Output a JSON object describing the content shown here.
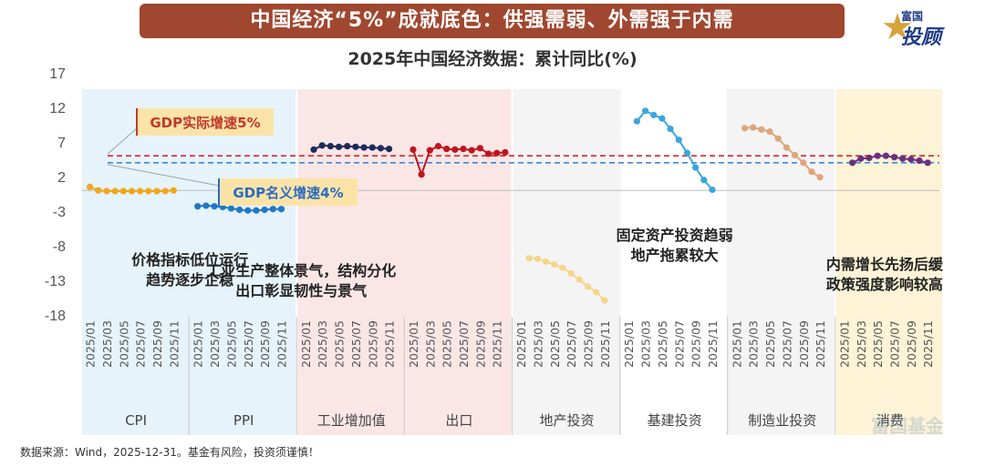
{
  "banner": {
    "title": "中国经济“5%”成就底色：供强需弱、外需强于内需"
  },
  "logo": {
    "top": "富国",
    "main": "投顾",
    "star_glyph": "★",
    "star_color": "#d6a23c",
    "text_color": "#1f3c88"
  },
  "footer": {
    "source": "数据来源：Wind，2025-12-31。基金有风险，投资须谨慎！",
    "watermark": "富国基金"
  },
  "chart_data": {
    "type": "line",
    "title": "2025年中国经济数据：累计同比(%)",
    "xlabel": "",
    "ylabel": "",
    "ylim": [
      -18,
      17
    ],
    "yticks": [
      17,
      12,
      7,
      2,
      -3,
      -8,
      -13,
      -18
    ],
    "zero_line": 0,
    "grid": false,
    "reference_lines": [
      {
        "name": "GDP实际增速5%",
        "value": 5,
        "color": "#d9262b",
        "style": "dashed",
        "label_color": "#c0392b",
        "label_bg": "#fbe3a8"
      },
      {
        "name": "GDP名义增速4%",
        "value": 4,
        "color": "#3a8ad8",
        "style": "dashed",
        "label_color": "#2a6cc0",
        "label_bg": "#fbe3a8"
      }
    ],
    "groups": [
      {
        "name": "CPI",
        "bg": "#e6f3fb",
        "color": "#f0a81b",
        "x": [
          "2025/01",
          "2025/02",
          "2025/03",
          "2025/04",
          "2025/05",
          "2025/06",
          "2025/07",
          "2025/08",
          "2025/09",
          "2025/10",
          "2025/11"
        ],
        "values": [
          0.5,
          0.0,
          -0.1,
          -0.1,
          -0.1,
          -0.1,
          -0.1,
          -0.1,
          -0.1,
          -0.1,
          0.0
        ]
      },
      {
        "name": "PPI",
        "bg": "#e6f3fb",
        "color": "#1f77c8",
        "x": [
          "2025/01",
          "2025/02",
          "2025/03",
          "2025/04",
          "2025/05",
          "2025/06",
          "2025/07",
          "2025/08",
          "2025/09",
          "2025/10",
          "2025/11"
        ],
        "values": [
          -2.3,
          -2.2,
          -2.3,
          -2.4,
          -2.6,
          -2.8,
          -2.9,
          -2.9,
          -2.8,
          -2.7,
          -2.7
        ]
      },
      {
        "name": "工业增加值",
        "bg": "#fbe6e6",
        "color": "#1d2a5c",
        "x": [
          "2025/02",
          "2025/03",
          "2025/04",
          "2025/05",
          "2025/06",
          "2025/07",
          "2025/08",
          "2025/09",
          "2025/10",
          "2025/11"
        ],
        "values": [
          5.9,
          6.5,
          6.4,
          6.3,
          6.4,
          6.3,
          6.2,
          6.2,
          6.1,
          6.0
        ]
      },
      {
        "name": "出口",
        "bg": "#fbe6e6",
        "color": "#c0141e",
        "x": [
          "2025/01",
          "2025/02",
          "2025/03",
          "2025/04",
          "2025/05",
          "2025/06",
          "2025/07",
          "2025/08",
          "2025/09",
          "2025/10",
          "2025/11",
          "2025/12"
        ],
        "values": [
          5.9,
          2.3,
          5.8,
          6.4,
          6.0,
          5.9,
          6.0,
          5.8,
          6.1,
          5.3,
          5.4,
          5.5
        ]
      },
      {
        "name": "地产投资",
        "bg": "#f4f4f4",
        "color": "#f6d58c",
        "x": [
          "2025/02",
          "2025/03",
          "2025/04",
          "2025/05",
          "2025/06",
          "2025/07",
          "2025/08",
          "2025/09",
          "2025/10",
          "2025/11"
        ],
        "values": [
          -9.8,
          -9.9,
          -10.3,
          -10.7,
          -11.2,
          -12.0,
          -12.9,
          -13.9,
          -14.7,
          -15.9
        ]
      },
      {
        "name": "基建投资",
        "bg": "#ffffff",
        "color": "#3aa6dc",
        "x": [
          "2025/02",
          "2025/03",
          "2025/04",
          "2025/05",
          "2025/06",
          "2025/07",
          "2025/08",
          "2025/09",
          "2025/10",
          "2025/11"
        ],
        "values": [
          10.0,
          11.5,
          10.9,
          10.4,
          8.9,
          7.3,
          5.4,
          3.3,
          1.5,
          0.1
        ]
      },
      {
        "name": "制造业投资",
        "bg": "#f4f4f4",
        "color": "#e0a57a",
        "x": [
          "2025/02",
          "2025/03",
          "2025/04",
          "2025/05",
          "2025/06",
          "2025/07",
          "2025/08",
          "2025/09",
          "2025/10",
          "2025/11"
        ],
        "values": [
          9.0,
          9.1,
          8.8,
          8.5,
          7.5,
          6.2,
          5.1,
          4.0,
          2.7,
          1.9
        ]
      },
      {
        "name": "消费",
        "bg": "#fdf3d6",
        "color": "#6b2f7e",
        "x": [
          "2025/02",
          "2025/03",
          "2025/04",
          "2025/05",
          "2025/06",
          "2025/07",
          "2025/08",
          "2025/09",
          "2025/10",
          "2025/11"
        ],
        "values": [
          4.0,
          4.6,
          4.7,
          5.0,
          5.0,
          4.8,
          4.6,
          4.5,
          4.3,
          4.0
        ]
      }
    ],
    "panels": [
      {
        "groups": [
          "CPI",
          "PPI"
        ],
        "bg": "#e6f3fb"
      },
      {
        "groups": [
          "工业增加值",
          "出口"
        ],
        "bg": "#fbe6e6"
      },
      {
        "groups": [
          "地产投资",
          "基建投资",
          "制造业投资"
        ],
        "bg": "#f4f4f4"
      },
      {
        "groups": [
          "消费"
        ],
        "bg": "#fdf3d6"
      }
    ],
    "annotations": [
      {
        "lines": [
          "价格指标低位运行",
          "趋势逐步企稳"
        ],
        "group": "CPI",
        "anchor": "center"
      },
      {
        "lines": [
          "工业生产整体景气，结构分化",
          "出口彰显韧性与景气"
        ],
        "group": "工业增加值",
        "anchor": "center"
      },
      {
        "lines": [
          "固定资产投资趋弱",
          "地产拖累较大"
        ],
        "group": "基建投资",
        "anchor": "center"
      },
      {
        "lines": [
          "内需增长先扬后缓",
          "政策强度影响较高"
        ],
        "group": "消费",
        "anchor": "center"
      }
    ]
  }
}
